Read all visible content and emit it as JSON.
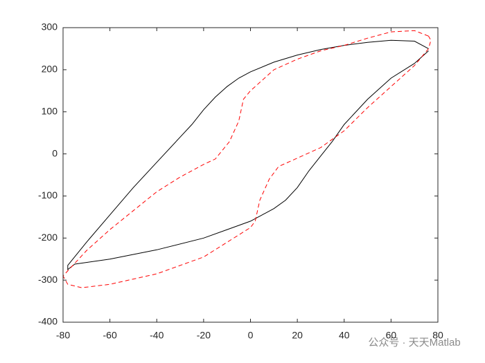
{
  "chart_data": {
    "type": "line",
    "xlim": [
      -80,
      80
    ],
    "xticks": [
      -80,
      -60,
      -40,
      -20,
      0,
      20,
      40,
      60,
      80
    ],
    "ylim": [
      -400,
      300
    ],
    "yticks": [
      -400,
      -300,
      -200,
      -100,
      0,
      100,
      200,
      300
    ],
    "box": true,
    "series": [
      {
        "color": "#000000",
        "linestyle": "solid",
        "x": [
          76,
          70,
          60,
          50,
          40,
          30,
          20,
          10,
          0,
          -5,
          -10,
          -15,
          -20,
          -25,
          -30,
          -40,
          -50,
          -60,
          -70,
          -78,
          -78,
          -75,
          -60,
          -40,
          -20,
          -10,
          0,
          5,
          10,
          15,
          20,
          25,
          30,
          35,
          40,
          50,
          60,
          70,
          76
        ],
        "values": [
          250,
          268,
          270,
          265,
          258,
          248,
          235,
          218,
          195,
          180,
          160,
          135,
          105,
          70,
          40,
          -20,
          -80,
          -145,
          -210,
          -265,
          -275,
          -262,
          -250,
          -228,
          -200,
          -180,
          -160,
          -145,
          -130,
          -110,
          -80,
          -40,
          -5,
          30,
          70,
          130,
          180,
          215,
          245
        ]
      },
      {
        "color": "#ff0000",
        "linestyle": "dashed",
        "x": [
          76,
          70,
          60,
          50,
          40,
          30,
          20,
          10,
          2,
          0,
          -3,
          -5,
          -9,
          -15,
          -20,
          -30,
          -40,
          -50,
          -60,
          -70,
          -80,
          -78,
          -72,
          -60,
          -40,
          -20,
          -10,
          0,
          2,
          4,
          8,
          12,
          20,
          30,
          40,
          50,
          60,
          70,
          76,
          77,
          76
        ],
        "values": [
          280,
          293,
          290,
          275,
          258,
          245,
          225,
          200,
          160,
          150,
          130,
          78,
          29,
          -12,
          -25,
          -55,
          -90,
          -135,
          -180,
          -230,
          -290,
          -310,
          -318,
          -310,
          -285,
          -245,
          -210,
          -175,
          -160,
          -110,
          -60,
          -30,
          -10,
          15,
          55,
          110,
          160,
          210,
          250,
          270,
          280
        ]
      }
    ],
    "watermark": "公众号 · 天天Matlab"
  }
}
